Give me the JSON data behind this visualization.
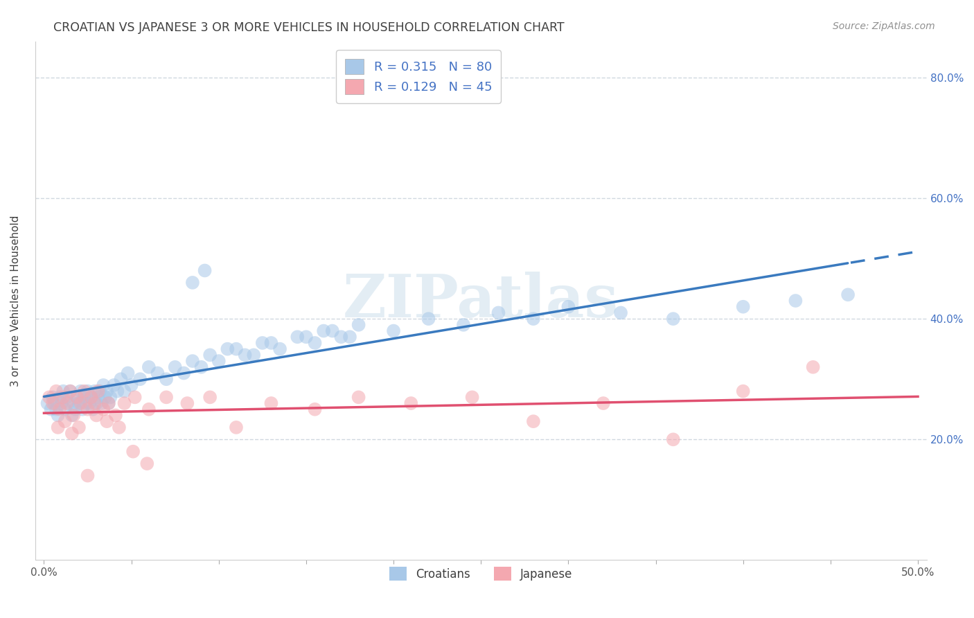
{
  "title": "CROATIAN VS JAPANESE 3 OR MORE VEHICLES IN HOUSEHOLD CORRELATION CHART",
  "source": "Source: ZipAtlas.com",
  "ylabel": "3 or more Vehicles in Household",
  "xlim": [
    -0.005,
    0.505
  ],
  "ylim": [
    0.0,
    0.86
  ],
  "xtick_positions": [
    0.0,
    0.5
  ],
  "xticklabels": [
    "0.0%",
    "50.0%"
  ],
  "ytick_positions": [
    0.2,
    0.4,
    0.6,
    0.8
  ],
  "yticklabels": [
    "20.0%",
    "40.0%",
    "60.0%",
    "80.0%"
  ],
  "legend_line1": "R = 0.315   N = 80",
  "legend_line2": "R = 0.129   N = 45",
  "blue_scatter_color": "#a8c8e8",
  "pink_scatter_color": "#f4a8b0",
  "blue_line_color": "#3a7abf",
  "pink_line_color": "#e05070",
  "blue_label_color": "#4472c4",
  "watermark_color": "#d8e8f0",
  "grid_color": "#d0d8e0",
  "title_color": "#404040",
  "source_color": "#909090",
  "croatians_x": [
    0.002,
    0.004,
    0.005,
    0.006,
    0.007,
    0.008,
    0.009,
    0.01,
    0.011,
    0.012,
    0.013,
    0.014,
    0.015,
    0.016,
    0.017,
    0.018,
    0.019,
    0.02,
    0.021,
    0.022,
    0.023,
    0.024,
    0.025,
    0.026,
    0.027,
    0.028,
    0.029,
    0.03,
    0.031,
    0.032,
    0.033,
    0.034,
    0.035,
    0.036,
    0.037,
    0.038,
    0.04,
    0.042,
    0.044,
    0.046,
    0.048,
    0.05,
    0.055,
    0.06,
    0.065,
    0.07,
    0.075,
    0.08,
    0.085,
    0.09,
    0.095,
    0.1,
    0.11,
    0.12,
    0.13,
    0.15,
    0.16,
    0.17,
    0.18,
    0.2,
    0.22,
    0.24,
    0.26,
    0.28,
    0.3,
    0.33,
    0.36,
    0.4,
    0.43,
    0.46,
    0.085,
    0.092,
    0.105,
    0.115,
    0.125,
    0.135,
    0.145,
    0.155,
    0.165,
    0.175
  ],
  "croatians_y": [
    0.26,
    0.25,
    0.27,
    0.26,
    0.25,
    0.24,
    0.27,
    0.26,
    0.28,
    0.25,
    0.27,
    0.26,
    0.28,
    0.24,
    0.26,
    0.25,
    0.27,
    0.26,
    0.28,
    0.25,
    0.27,
    0.26,
    0.28,
    0.26,
    0.27,
    0.25,
    0.28,
    0.26,
    0.27,
    0.28,
    0.26,
    0.29,
    0.27,
    0.28,
    0.26,
    0.27,
    0.29,
    0.28,
    0.3,
    0.28,
    0.31,
    0.29,
    0.3,
    0.32,
    0.31,
    0.3,
    0.32,
    0.31,
    0.33,
    0.32,
    0.34,
    0.33,
    0.35,
    0.34,
    0.36,
    0.37,
    0.38,
    0.37,
    0.39,
    0.38,
    0.4,
    0.39,
    0.41,
    0.4,
    0.42,
    0.41,
    0.4,
    0.42,
    0.43,
    0.44,
    0.46,
    0.48,
    0.35,
    0.34,
    0.36,
    0.35,
    0.37,
    0.36,
    0.38,
    0.37
  ],
  "japanese_x": [
    0.003,
    0.005,
    0.007,
    0.009,
    0.011,
    0.013,
    0.015,
    0.017,
    0.019,
    0.021,
    0.023,
    0.025,
    0.027,
    0.029,
    0.031,
    0.034,
    0.037,
    0.041,
    0.046,
    0.052,
    0.06,
    0.07,
    0.082,
    0.095,
    0.11,
    0.13,
    0.155,
    0.18,
    0.21,
    0.245,
    0.28,
    0.32,
    0.36,
    0.4,
    0.44,
    0.008,
    0.012,
    0.016,
    0.02,
    0.025,
    0.03,
    0.036,
    0.043,
    0.051,
    0.059
  ],
  "japanese_y": [
    0.27,
    0.26,
    0.28,
    0.25,
    0.27,
    0.26,
    0.28,
    0.24,
    0.27,
    0.26,
    0.28,
    0.25,
    0.27,
    0.26,
    0.28,
    0.25,
    0.26,
    0.24,
    0.26,
    0.27,
    0.25,
    0.27,
    0.26,
    0.27,
    0.22,
    0.26,
    0.25,
    0.27,
    0.26,
    0.27,
    0.23,
    0.26,
    0.2,
    0.28,
    0.32,
    0.22,
    0.23,
    0.21,
    0.22,
    0.14,
    0.24,
    0.23,
    0.22,
    0.18,
    0.16
  ]
}
